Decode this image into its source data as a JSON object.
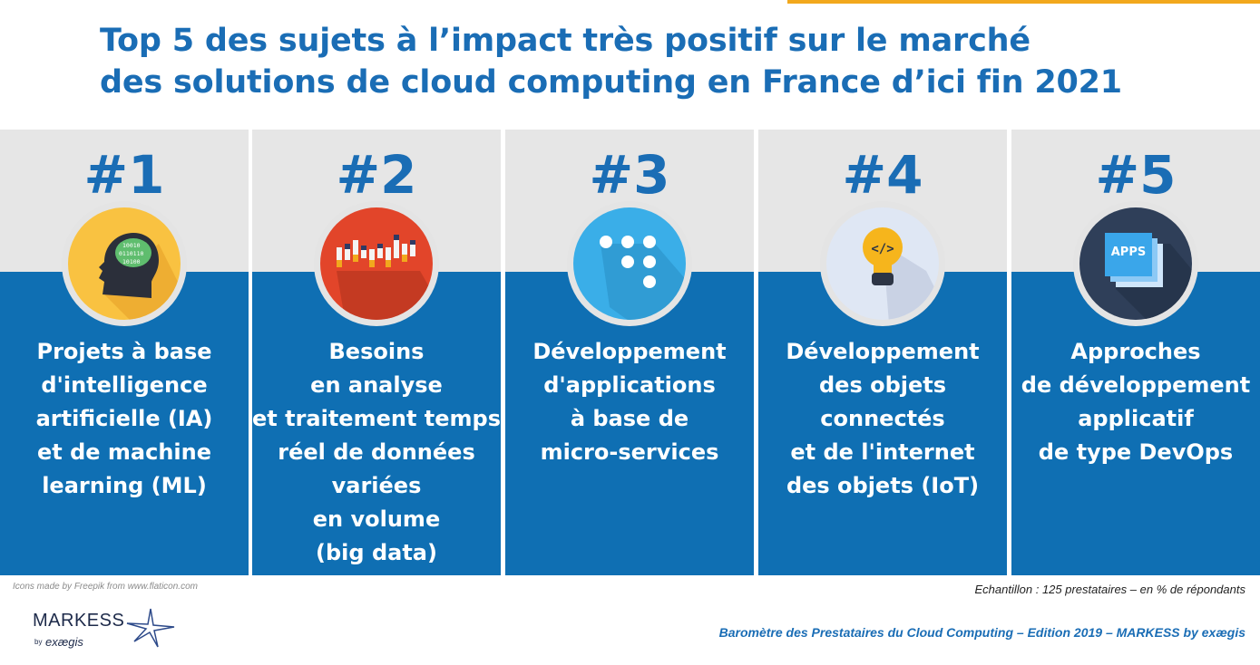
{
  "title": {
    "line1": "Top 5 des sujets à l’impact très positif sur le marché",
    "line2": "des solutions de cloud computing en France d’ici fin 2021"
  },
  "topics": [
    {
      "rank": "#1",
      "icon": "brain-head-icon",
      "lines": [
        "Projets à base",
        "d'intelligence",
        "artificielle (IA)",
        "et de machine",
        "learning (ML)"
      ]
    },
    {
      "rank": "#2",
      "icon": "bar-chart-icon",
      "lines": [
        "Besoins",
        "en analyse",
        "et traitement temps",
        "réel de données",
        "variées",
        "en volume",
        "(big data)"
      ]
    },
    {
      "rank": "#3",
      "icon": "microservices-dots-icon",
      "lines": [
        "Développement",
        "d'applications",
        "à base de",
        "micro-services"
      ]
    },
    {
      "rank": "#4",
      "icon": "lightbulb-code-icon",
      "lines": [
        "Développement",
        "des objets",
        "connectés",
        "et de l'internet",
        "des objets (IoT)"
      ]
    },
    {
      "rank": "#5",
      "icon": "apps-stack-icon",
      "apps_label": "APPS",
      "lines": [
        "Approches",
        "de développement",
        "applicatif",
        "de type DevOps"
      ]
    }
  ],
  "footer": {
    "icons_credit": "Icons made by Freepik from www.flaticon.com",
    "sample": "Echantillon : 125 prestataires – en % de répondants",
    "source": "Baromètre des Prestataires du Cloud Computing – Edition 2019 – MARKESS by exægis"
  },
  "logo": {
    "name": "MARKESS",
    "by": "by",
    "brand": "exægis"
  },
  "colors": {
    "title": "#1a6db5",
    "panel": "#0f6fb3",
    "panel_top": "#e6e6e6",
    "accent": "#f2a81d"
  }
}
